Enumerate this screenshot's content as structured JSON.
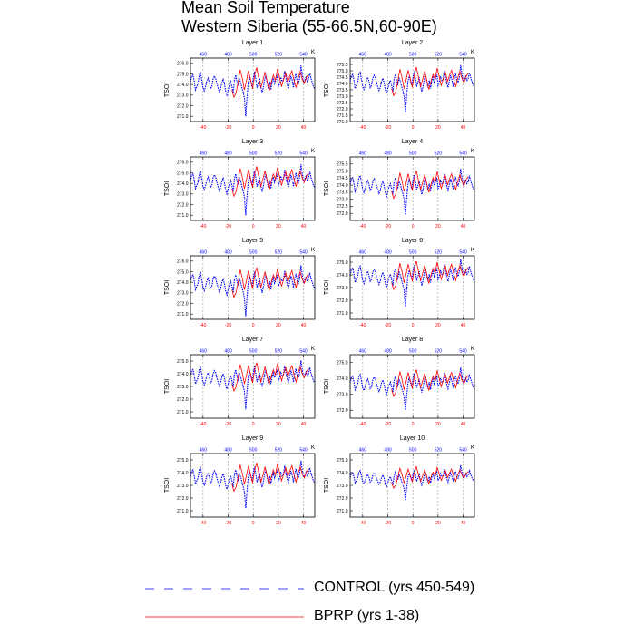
{
  "figure": {
    "title_line1": "Mean Soil Temperature",
    "title_line2": "Western Siberia (55-66.5N,60-90E)"
  },
  "legend": {
    "control_label": "CONTROL (yrs 450-549)",
    "bprp_label": "BPRP (yrs 1-38)"
  },
  "colors": {
    "control": "#0000ff",
    "bprp": "#ff0000",
    "grid": "#999999"
  },
  "chart_data": {
    "type": "line",
    "ylabel": "TSOI",
    "top_axis_unit": "K",
    "top_axis_ticks": [
      460,
      480,
      500,
      520,
      540
    ],
    "top_axis_range": [
      450,
      549
    ],
    "bottom_axis_ticks": [
      -40,
      -20,
      0,
      20,
      40
    ],
    "bottom_axis_range": [
      -50,
      49
    ],
    "vertical_grid": "dashed at bottom-axis ticks",
    "panels": [
      {
        "label": "Layer 1",
        "ylim": [
          270.5,
          276.5
        ],
        "yticks": [
          271.0,
          272.0,
          273.0,
          274.0,
          275.0,
          276.0
        ],
        "ytick_labels": [
          "271.0",
          "272.0",
          "273.0",
          "274.0",
          "275.0",
          "276.0"
        ],
        "base": 274.0,
        "amp": 1.0,
        "dip": 3.0
      },
      {
        "label": "Layer 2",
        "ylim": [
          271.0,
          276.0
        ],
        "yticks": [
          271.0,
          271.5,
          272.0,
          272.5,
          273.0,
          273.5,
          274.0,
          274.5,
          275.0,
          275.5
        ],
        "ytick_labels": [
          "271.0",
          "271.5",
          "272.0",
          "272.5",
          "273.0",
          "273.5",
          "274.0",
          "274.5",
          "275.0",
          "275.5"
        ],
        "base": 274.0,
        "amp": 0.8,
        "dip": 2.3
      },
      {
        "label": "Layer 3",
        "ylim": [
          270.5,
          276.5
        ],
        "yticks": [
          271.0,
          272.0,
          273.0,
          274.0,
          275.0,
          276.0
        ],
        "ytick_labels": [
          "271.0",
          "272.0",
          "273.0",
          "274.0",
          "275.0",
          "276.0"
        ],
        "base": 274.0,
        "amp": 1.0,
        "dip": 3.0
      },
      {
        "label": "Layer 4",
        "ylim": [
          271.5,
          276.0
        ],
        "yticks": [
          272.0,
          272.5,
          273.0,
          273.5,
          274.0,
          274.5,
          275.0,
          275.5
        ],
        "ytick_labels": [
          "272.0",
          "272.5",
          "273.0",
          "273.5",
          "274.0",
          "274.5",
          "275.0",
          "275.5"
        ],
        "base": 273.9,
        "amp": 0.7,
        "dip": 2.0
      },
      {
        "label": "Layer 5",
        "ylim": [
          270.5,
          276.5
        ],
        "yticks": [
          271.0,
          272.0,
          273.0,
          274.0,
          275.0,
          276.0
        ],
        "ytick_labels": [
          "271.0",
          "272.0",
          "273.0",
          "274.0",
          "275.0",
          "276.0"
        ],
        "base": 273.8,
        "amp": 1.0,
        "dip": 3.0
      },
      {
        "label": "Layer 6",
        "ylim": [
          270.5,
          275.5
        ],
        "yticks": [
          271.0,
          272.0,
          273.0,
          274.0,
          275.0
        ],
        "ytick_labels": [
          "271.0",
          "272.0",
          "273.0",
          "274.0",
          "275.0"
        ],
        "base": 273.8,
        "amp": 0.8,
        "dip": 2.3
      },
      {
        "label": "Layer 7",
        "ylim": [
          270.5,
          275.5
        ],
        "yticks": [
          271.0,
          272.0,
          273.0,
          274.0,
          275.0
        ],
        "ytick_labels": [
          "271.0",
          "272.0",
          "273.0",
          "274.0",
          "275.0"
        ],
        "base": 273.6,
        "amp": 0.8,
        "dip": 2.4
      },
      {
        "label": "Layer 8",
        "ylim": [
          271.5,
          275.5
        ],
        "yticks": [
          272.0,
          273.0,
          274.0,
          275.0
        ],
        "ytick_labels": [
          "272.0",
          "273.0",
          "274.0",
          "275.0"
        ],
        "base": 273.6,
        "amp": 0.6,
        "dip": 1.6
      },
      {
        "label": "Layer 9",
        "ylim": [
          270.5,
          275.5
        ],
        "yticks": [
          271.0,
          272.0,
          273.0,
          274.0,
          275.0
        ],
        "ytick_labels": [
          "271.0",
          "272.0",
          "273.0",
          "274.0",
          "275.0"
        ],
        "base": 273.5,
        "amp": 0.8,
        "dip": 2.3
      },
      {
        "label": "Layer 10",
        "ylim": [
          270.5,
          275.5
        ],
        "yticks": [
          271.0,
          272.0,
          273.0,
          274.0,
          275.0
        ],
        "ytick_labels": [
          "271.0",
          "272.0",
          "273.0",
          "274.0",
          "275.0"
        ],
        "base": 273.5,
        "amp": 0.6,
        "dip": 1.7
      }
    ],
    "series": [
      {
        "name": "CONTROL (yrs 450-549)",
        "style": "dashed",
        "x_range": [
          450,
          549
        ],
        "shape": [
          0.2,
          0.8,
          0.9,
          0.3,
          -0.5,
          -0.2,
          0.1,
          0.9,
          1.1,
          0.4,
          -0.3,
          -0.6,
          -0.2,
          0.3,
          0.6,
          0.2,
          -0.4,
          -0.2,
          0.5,
          0.8,
          0.6,
          0.1,
          -0.3,
          -0.7,
          -0.4,
          0.2,
          0.5,
          0.1,
          -0.6,
          -1.0,
          -0.5,
          0.0,
          0.3,
          -0.2,
          -0.8,
          0.4,
          0.9,
          0.3,
          -0.1,
          0.5,
          0.2,
          -0.3,
          -0.7,
          -1.3,
          -2.8,
          -1.2,
          0.2,
          0.7,
          0.3,
          -0.2,
          0.6,
          1.2,
          0.5,
          -0.3,
          0.1,
          0.6,
          -0.2,
          -0.8,
          -0.3,
          0.4,
          0.9,
          0.2,
          -0.4,
          0.3,
          -0.5,
          0.2,
          0.6,
          0.1,
          0.5,
          0.9,
          -0.2,
          0.1,
          0.7,
          0.3,
          0.4,
          1.3,
          0.6,
          0.0,
          -0.4,
          0.2,
          0.8,
          0.4,
          -0.3,
          0.5,
          1.0,
          0.3,
          0.1,
          0.6,
          1.8,
          0.9,
          0.2,
          0.4,
          0.7,
          0.3,
          0.5,
          1.1,
          0.6,
          0.2,
          -0.2,
          -0.4
        ]
      },
      {
        "name": "BPRP (yrs 1-38)",
        "style": "solid",
        "x_range": [
          -17,
          44
        ],
        "shape": [
          -0.5,
          -1.2,
          -0.8,
          0.2,
          1.4,
          0.6,
          -0.5,
          0.3,
          1.3,
          0.5,
          -0.4,
          0.9,
          1.6,
          0.6,
          -0.3,
          0.4,
          1.2,
          0.3,
          -0.6,
          0.2,
          0.9,
          0.4,
          1.5,
          0.7,
          -0.2,
          0.5,
          1.1,
          0.2,
          0.8,
          1.3,
          0.4,
          -0.3,
          0.6,
          1.2,
          0.5,
          0.1,
          0.7,
          1.0
        ]
      }
    ]
  }
}
